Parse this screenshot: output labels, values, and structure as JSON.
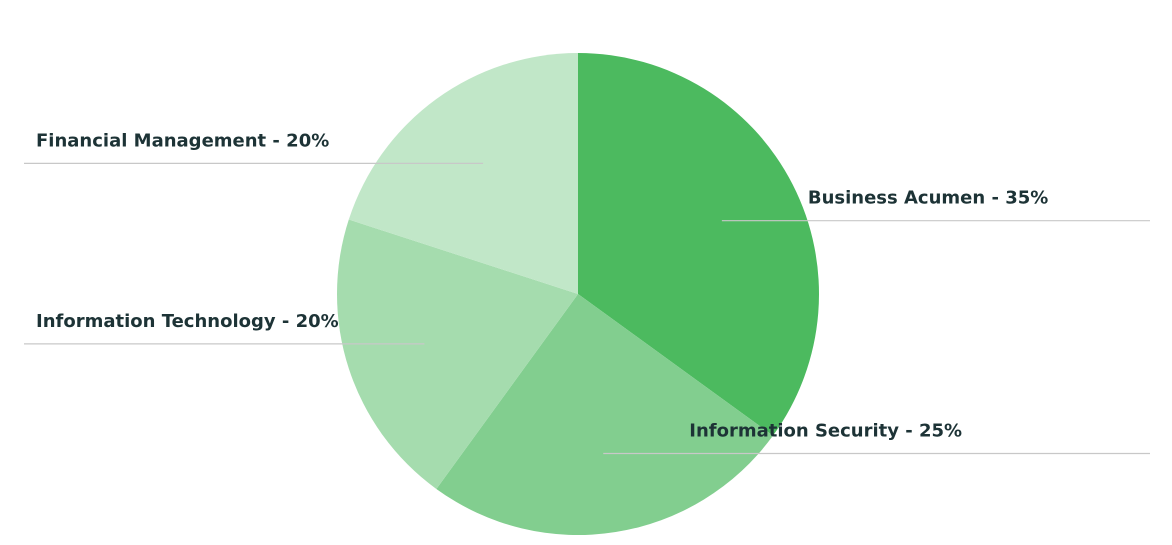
{
  "chart_data": {
    "type": "pie",
    "categories": [
      "Business Acumen - 35%",
      "Information Security - 25%",
      "Information Technology - 20%",
      "Financial Management - 20%"
    ],
    "values": [
      35,
      25,
      20,
      20
    ],
    "colors": [
      "#4cba5f",
      "#82ce8f",
      "#a5dcae",
      "#c1e7c8"
    ]
  }
}
